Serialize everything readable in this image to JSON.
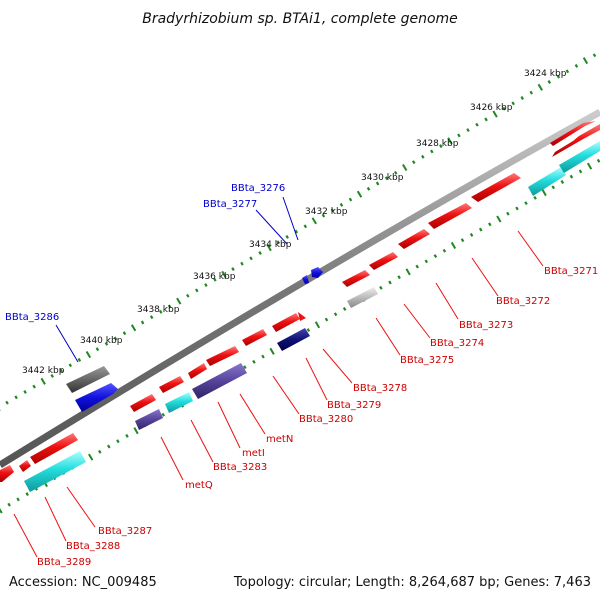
{
  "title": "Bradyrhizobium sp. BTAi1, complete genome",
  "footer": {
    "accession": "Accession: NC_009485",
    "topology": "Topology: circular; Length: 8,264,687 bp; Genes: 7,463"
  },
  "colors": {
    "backbone": "#777777",
    "tick": "#228822",
    "red_gene": "#ee1111",
    "cyan_gene": "#22dddd",
    "navy_gene": "#111177",
    "purple_gene": "#554499",
    "blue_gene": "#1111dd",
    "grey_gene": "#666666",
    "silver_gene": "#bbbbbb",
    "label_red": "#cc0000",
    "label_blue": "#0000cc"
  },
  "scale_labels": [
    "3424 kbp",
    "3426 kbp",
    "3428 kbp",
    "3430 kbp",
    "3432 kbp",
    "3434 kbp",
    "3436 kbp",
    "3438 kbp",
    "3440 kbp",
    "3442 kbp"
  ],
  "gene_labels_bottom": [
    "BBta_3271",
    "BBta_3272",
    "BBta_3273",
    "BBta_3274",
    "BBta_3275",
    "BBta_3278",
    "BBta_3279",
    "BBta_3280",
    "metN",
    "metI",
    "BBta_3283",
    "metQ",
    "BBta_3287",
    "BBta_3288",
    "BBta_3289"
  ],
  "gene_labels_top": [
    "BBta_3276",
    "BBta_3277",
    "BBta_3286"
  ]
}
